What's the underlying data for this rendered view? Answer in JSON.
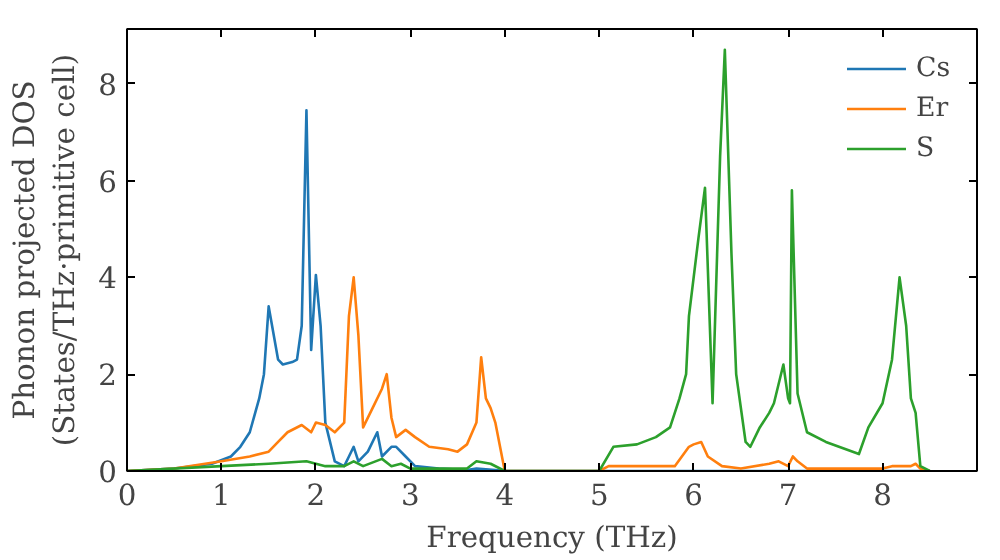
{
  "chart_data": {
    "type": "line",
    "xlabel": "Frequency (THz)",
    "ylabel": "Phonon projected DOS\n(States/THz·primitive cell)",
    "xlim": [
      0,
      9.0
    ],
    "ylim": [
      0,
      9.13
    ],
    "xticks": [
      0,
      1,
      2,
      3,
      4,
      5,
      6,
      7,
      8
    ],
    "yticks": [
      0,
      2,
      4,
      6,
      8
    ],
    "legend": "top right",
    "grid": false,
    "series": [
      {
        "name": "Cs",
        "color": "#1f77b4",
        "x": [
          0,
          0.5,
          0.9,
          1.1,
          1.2,
          1.3,
          1.4,
          1.45,
          1.5,
          1.6,
          1.65,
          1.75,
          1.8,
          1.85,
          1.9,
          1.95,
          2.0,
          2.05,
          2.1,
          2.2,
          2.3,
          2.35,
          2.4,
          2.45,
          2.55,
          2.65,
          2.7,
          2.8,
          2.85,
          2.95,
          3.05,
          3.3,
          3.6,
          3.7,
          3.9,
          4.0,
          5.0,
          8.5
        ],
        "values": [
          0,
          0.05,
          0.15,
          0.3,
          0.5,
          0.8,
          1.5,
          2.0,
          3.4,
          2.3,
          2.2,
          2.25,
          2.3,
          3.0,
          7.45,
          2.5,
          4.05,
          3.0,
          1.0,
          0.2,
          0.1,
          0.3,
          0.5,
          0.2,
          0.4,
          0.8,
          0.3,
          0.5,
          0.5,
          0.3,
          0.1,
          0.05,
          0.02,
          0.05,
          0.02,
          0,
          0,
          0
        ]
      },
      {
        "name": "Er",
        "color": "#ff7f0e",
        "x": [
          0,
          0.5,
          1.0,
          1.3,
          1.5,
          1.6,
          1.7,
          1.85,
          1.95,
          2.0,
          2.1,
          2.2,
          2.3,
          2.35,
          2.4,
          2.45,
          2.5,
          2.6,
          2.7,
          2.75,
          2.8,
          2.85,
          2.95,
          3.05,
          3.2,
          3.4,
          3.5,
          3.6,
          3.7,
          3.75,
          3.8,
          3.85,
          3.9,
          4.0,
          5.0,
          5.1,
          5.8,
          5.95,
          6.0,
          6.08,
          6.15,
          6.3,
          6.5,
          6.8,
          6.9,
          7.0,
          7.05,
          7.1,
          7.2,
          8.0,
          8.1,
          8.3,
          8.35,
          8.4,
          8.5
        ],
        "values": [
          0,
          0.05,
          0.2,
          0.3,
          0.4,
          0.6,
          0.8,
          0.95,
          0.8,
          1.0,
          0.95,
          0.8,
          1.0,
          3.2,
          4.0,
          2.8,
          0.9,
          1.3,
          1.7,
          2.0,
          1.1,
          0.7,
          0.85,
          0.7,
          0.5,
          0.45,
          0.4,
          0.55,
          1.0,
          2.35,
          1.5,
          1.3,
          1.0,
          0,
          0,
          0.1,
          0.1,
          0.5,
          0.55,
          0.6,
          0.3,
          0.1,
          0.05,
          0.15,
          0.2,
          0.1,
          0.3,
          0.2,
          0.05,
          0.05,
          0.1,
          0.1,
          0.15,
          0.05,
          0
        ]
      },
      {
        "name": "S",
        "color": "#2ca02c",
        "x": [
          0,
          1.0,
          1.5,
          1.9,
          2.0,
          2.1,
          2.3,
          2.4,
          2.5,
          2.7,
          2.8,
          2.9,
          3.0,
          3.6,
          3.7,
          3.85,
          4.0,
          5.0,
          5.15,
          5.4,
          5.6,
          5.75,
          5.85,
          5.92,
          5.95,
          6.05,
          6.12,
          6.2,
          6.28,
          6.33,
          6.4,
          6.45,
          6.55,
          6.6,
          6.7,
          6.8,
          6.85,
          6.95,
          7.0,
          7.02,
          7.04,
          7.1,
          7.2,
          7.4,
          7.75,
          7.85,
          8.0,
          8.1,
          8.18,
          8.25,
          8.3,
          8.35,
          8.4,
          8.5
        ],
        "values": [
          0,
          0.1,
          0.15,
          0.2,
          0.15,
          0.1,
          0.1,
          0.2,
          0.1,
          0.25,
          0.1,
          0.15,
          0.05,
          0.05,
          0.2,
          0.15,
          0,
          0,
          0.5,
          0.55,
          0.7,
          0.9,
          1.5,
          2.0,
          3.2,
          4.8,
          5.85,
          1.4,
          6.5,
          8.7,
          4.5,
          2.0,
          0.6,
          0.5,
          0.9,
          1.2,
          1.4,
          2.2,
          1.5,
          1.4,
          5.8,
          1.6,
          0.8,
          0.6,
          0.35,
          0.9,
          1.4,
          2.3,
          4.0,
          3.0,
          1.5,
          1.2,
          0.1,
          0
        ]
      }
    ]
  }
}
